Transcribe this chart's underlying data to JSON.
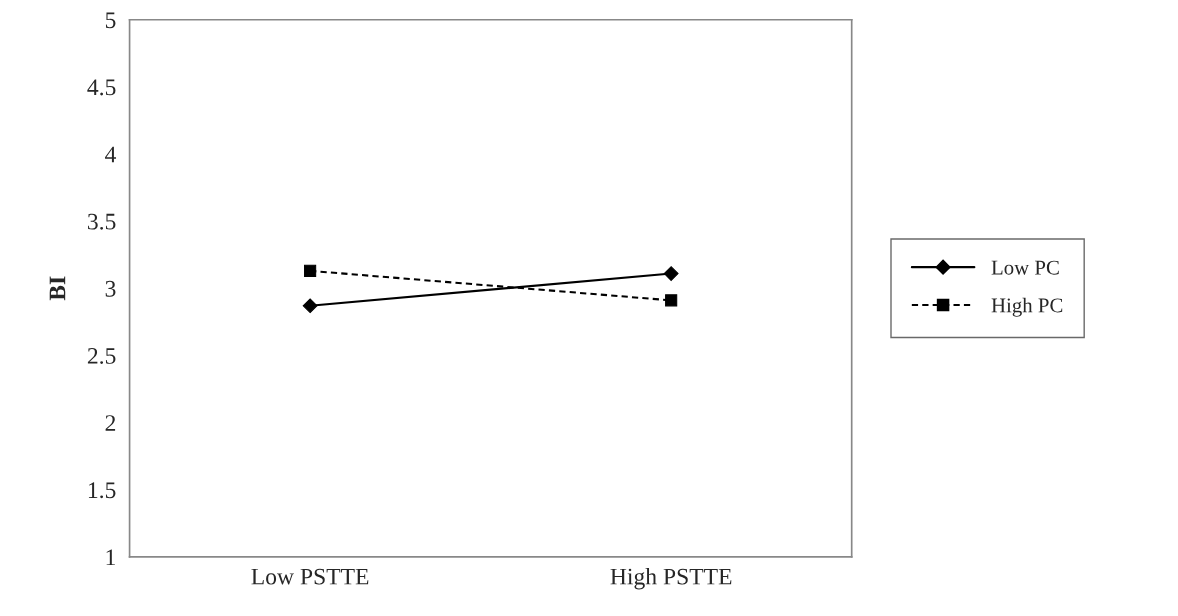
{
  "chart_data": {
    "type": "line",
    "ylabel": "BI",
    "categories": [
      "Low PSTTE",
      "High PSTTE"
    ],
    "series": [
      {
        "name": "Low PC",
        "color": "#000000",
        "values": [
          2.87,
          3.11
        ],
        "marker": "diamond",
        "line_style": "solid"
      },
      {
        "name": "High PC",
        "color": "#000000",
        "values": [
          3.13,
          2.91
        ],
        "marker": "square",
        "line_style": "dashed"
      }
    ],
    "ylim": [
      1,
      5
    ],
    "yticks": [
      1,
      1.5,
      2,
      2.5,
      3,
      3.5,
      4,
      4.5,
      5
    ],
    "grid": false,
    "legend": "right"
  }
}
